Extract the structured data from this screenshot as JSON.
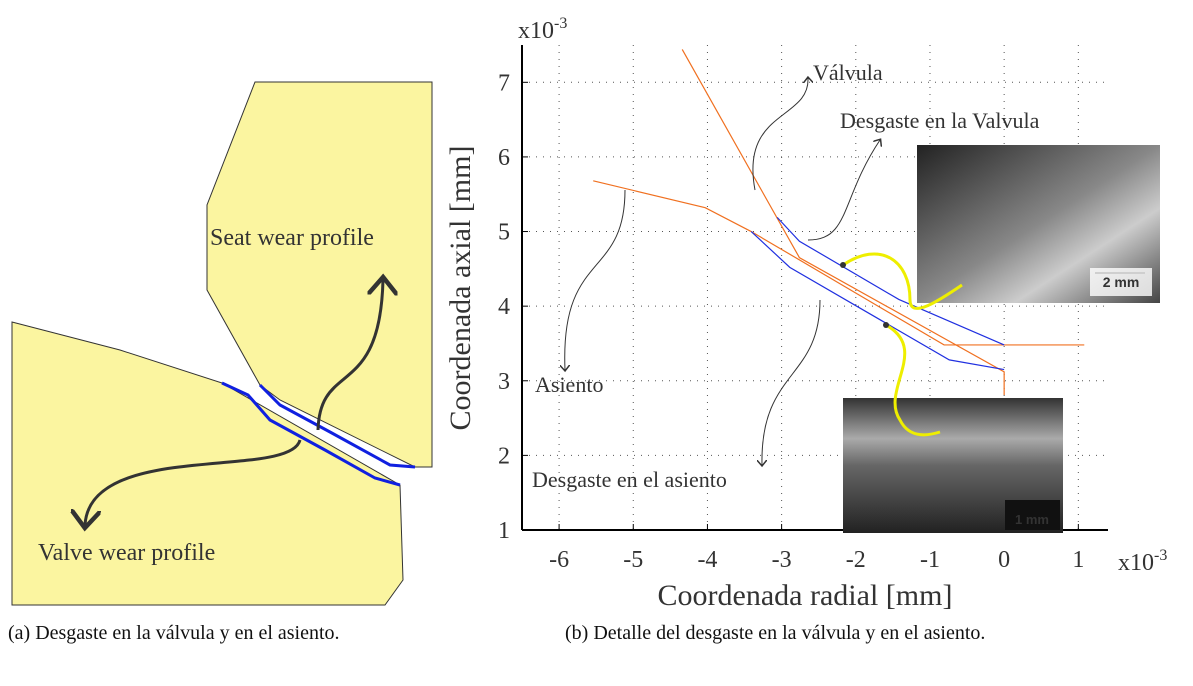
{
  "figure_a": {
    "labels": [
      "Seat wear profile",
      "Valve wear profile"
    ],
    "caption": "(a) Desgaste en la válvula y en el asiento."
  },
  "figure_b": {
    "caption": "(b) Detalle del desgaste en la válvula y en el asiento.",
    "scale_bars": [
      "2 mm",
      "1 mm"
    ]
  },
  "chart_data": {
    "type": "line",
    "xlabel": "Coordenada radial [mm]",
    "ylabel": "Coordenada axial [mm]",
    "x_multiplier": "x10",
    "x_exponent": "-3",
    "y_multiplier": "x10",
    "y_exponent": "-3",
    "xlim": [
      -6.5,
      1.4
    ],
    "ylim": [
      1,
      7.5
    ],
    "xticks": [
      -6,
      -5,
      -4,
      -3,
      -2,
      -1,
      0,
      1
    ],
    "yticks": [
      1,
      2,
      3,
      4,
      5,
      6,
      7
    ],
    "grid": true,
    "annotations": [
      "Válvula",
      "Desgaste en la Valvula",
      "Asiento",
      "Desgaste en el asiento"
    ],
    "series": [
      {
        "color": "#f07020",
        "x": [
          -4.34,
          -2.76,
          0,
          0
        ],
        "values": [
          7.44,
          4.65,
          3.12,
          2.81
        ]
      },
      {
        "color": "#f07020",
        "x": [
          -5.54,
          -4.03,
          -3.41,
          -0.81,
          1.08
        ],
        "values": [
          5.68,
          5.32,
          5.0,
          3.48,
          3.48
        ]
      },
      {
        "color": "#2030e0",
        "x": [
          -3.06,
          -2.76,
          -1.42,
          0
        ],
        "values": [
          5.19,
          4.87,
          4.09,
          3.48
        ]
      },
      {
        "color": "#2030e0",
        "x": [
          -3.41,
          -2.89,
          -0.74,
          0
        ],
        "values": [
          5.0,
          4.52,
          3.28,
          3.15
        ]
      }
    ]
  }
}
